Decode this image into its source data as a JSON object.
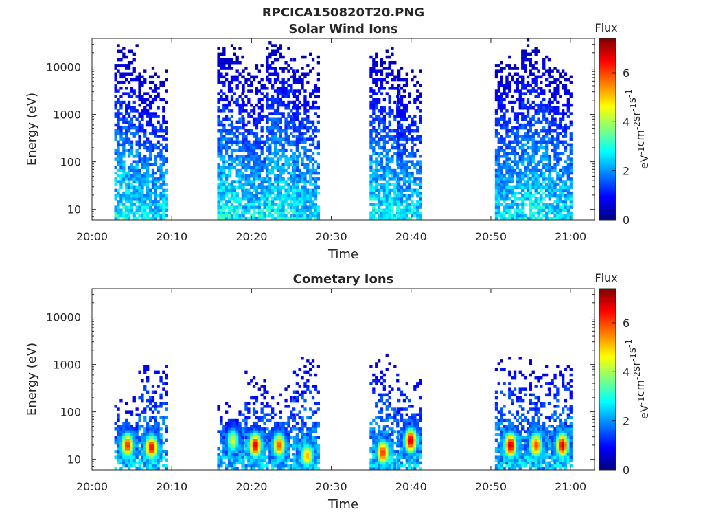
{
  "figure": {
    "title": "RPCICA150820T20.PNG"
  },
  "colormap": {
    "name": "jet",
    "stops": [
      "#00007f",
      "#0000ff",
      "#007fff",
      "#00ffff",
      "#7fff7f",
      "#ffff00",
      "#ff7f00",
      "#ff0000",
      "#7f0000"
    ]
  },
  "chart_data": [
    {
      "type": "heatmap",
      "title": "Solar Wind Ions",
      "xlabel": "Time",
      "ylabel": "Energy (eV)",
      "x_ticks": [
        "20:00",
        "20:10",
        "20:20",
        "20:30",
        "20:40",
        "20:50",
        "21:00"
      ],
      "x_tick_minutes": [
        0,
        10,
        20,
        30,
        40,
        50,
        60
      ],
      "xlim_minutes": [
        0,
        63
      ],
      "y_ticks": [
        "10",
        "100",
        "1000",
        "10000"
      ],
      "y_tick_values": [
        10,
        100,
        1000,
        10000
      ],
      "ylim": [
        6,
        40000
      ],
      "y_scale": "log",
      "colorbar": {
        "title": "Flux",
        "label": "eV-1cm-2sr-1s-1",
        "ticks": [
          "0",
          "2",
          "4",
          "6"
        ],
        "tick_values": [
          0,
          2,
          4,
          6
        ],
        "range": [
          0,
          7.4
        ]
      },
      "bursts": [
        {
          "start_min": 2.8,
          "end_min": 5.8,
          "emax": 25000,
          "peak_flux": 2.6
        },
        {
          "start_min": 5.8,
          "end_min": 9.2,
          "emax": 8000,
          "peak_flux": 2.4
        },
        {
          "start_min": 15.7,
          "end_min": 18.8,
          "emax": 25000,
          "peak_flux": 2.6
        },
        {
          "start_min": 18.8,
          "end_min": 21.5,
          "emax": 10000,
          "peak_flux": 2.4
        },
        {
          "start_min": 21.8,
          "end_min": 25.2,
          "emax": 35000,
          "peak_flux": 2.6
        },
        {
          "start_min": 25.2,
          "end_min": 28.5,
          "emax": 15000,
          "peak_flux": 2.4
        },
        {
          "start_min": 34.8,
          "end_min": 38.3,
          "emax": 20000,
          "peak_flux": 2.6
        },
        {
          "start_min": 38.3,
          "end_min": 41.0,
          "emax": 8000,
          "peak_flux": 2.4
        },
        {
          "start_min": 50.5,
          "end_min": 53.8,
          "emax": 15000,
          "peak_flux": 2.4
        },
        {
          "start_min": 53.8,
          "end_min": 57.2,
          "emax": 30000,
          "peak_flux": 2.6
        },
        {
          "start_min": 57.2,
          "end_min": 60.0,
          "emax": 10000,
          "peak_flux": 2.4
        }
      ]
    },
    {
      "type": "heatmap",
      "title": "Cometary Ions",
      "xlabel": "Time",
      "ylabel": "Energy (eV)",
      "x_ticks": [
        "20:00",
        "20:10",
        "20:20",
        "20:30",
        "20:40",
        "20:50",
        "21:00"
      ],
      "x_tick_minutes": [
        0,
        10,
        20,
        30,
        40,
        50,
        60
      ],
      "xlim_minutes": [
        0,
        63
      ],
      "y_ticks": [
        "10",
        "100",
        "1000",
        "10000"
      ],
      "y_tick_values": [
        10,
        100,
        1000,
        10000
      ],
      "ylim": [
        6,
        40000
      ],
      "y_scale": "log",
      "colorbar": {
        "title": "Flux",
        "label": "eV-1cm-2sr-1s-1",
        "ticks": [
          "0",
          "2",
          "4",
          "6"
        ],
        "tick_values": [
          0,
          2,
          4,
          6
        ],
        "range": [
          0,
          7.4
        ]
      },
      "bursts": [
        {
          "start_min": 2.8,
          "end_min": 5.8,
          "emax": 200,
          "peak_min": 4.3,
          "peak_energy": 20,
          "peak_flux": 6.3
        },
        {
          "start_min": 5.8,
          "end_min": 9.2,
          "emax": 1200,
          "peak_min": 7.3,
          "peak_energy": 18,
          "peak_flux": 6.6
        },
        {
          "start_min": 15.7,
          "end_min": 18.8,
          "emax": 150,
          "peak_min": 17.5,
          "peak_energy": 25,
          "peak_flux": 4.5
        },
        {
          "start_min": 18.8,
          "end_min": 21.5,
          "emax": 600,
          "peak_min": 20.3,
          "peak_energy": 20,
          "peak_flux": 6.9
        },
        {
          "start_min": 21.8,
          "end_min": 25.2,
          "emax": 300,
          "peak_min": 23.3,
          "peak_energy": 20,
          "peak_flux": 6.0
        },
        {
          "start_min": 25.2,
          "end_min": 28.5,
          "emax": 1400,
          "peak_min": 26.8,
          "peak_energy": 12,
          "peak_flux": 5.2
        },
        {
          "start_min": 34.8,
          "end_min": 38.3,
          "emax": 1200,
          "peak_min": 36.3,
          "peak_energy": 14,
          "peak_flux": 6.2
        },
        {
          "start_min": 38.3,
          "end_min": 41.0,
          "emax": 600,
          "peak_min": 39.8,
          "peak_energy": 25,
          "peak_flux": 6.9
        },
        {
          "start_min": 50.5,
          "end_min": 53.8,
          "emax": 1400,
          "peak_min": 52.3,
          "peak_energy": 20,
          "peak_flux": 6.9
        },
        {
          "start_min": 53.8,
          "end_min": 57.2,
          "emax": 1000,
          "peak_min": 55.5,
          "peak_energy": 20,
          "peak_flux": 6.0
        },
        {
          "start_min": 57.2,
          "end_min": 60.0,
          "emax": 1200,
          "peak_min": 58.8,
          "peak_energy": 20,
          "peak_flux": 6.9
        }
      ]
    }
  ]
}
